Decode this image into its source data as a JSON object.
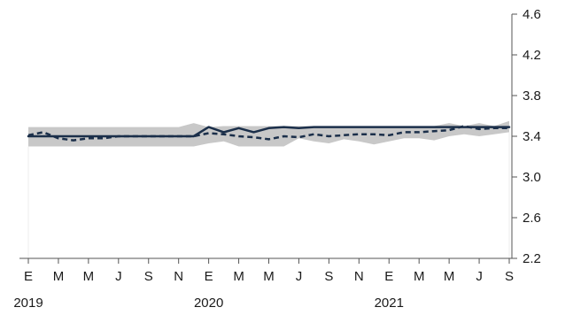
{
  "chart_data": {
    "type": "line",
    "title": "",
    "xlabel": "",
    "ylabel": "",
    "ylim": [
      2.2,
      4.6
    ],
    "yticks": [
      2.2,
      2.6,
      3.0,
      3.4,
      3.8,
      4.2,
      4.6
    ],
    "y_axis_position": "right",
    "grid": false,
    "legend": "none",
    "x_tick_labels": [
      "E",
      "M",
      "M",
      "J",
      "S",
      "N",
      "E",
      "M",
      "M",
      "J",
      "S",
      "N",
      "E",
      "M",
      "M",
      "J",
      "S"
    ],
    "x_year_labels": [
      "2019",
      "2020",
      "2021"
    ],
    "x": [
      "2019-01",
      "2019-02",
      "2019-03",
      "2019-04",
      "2019-05",
      "2019-06",
      "2019-07",
      "2019-08",
      "2019-09",
      "2019-10",
      "2019-11",
      "2019-12",
      "2020-01",
      "2020-02",
      "2020-03",
      "2020-04",
      "2020-05",
      "2020-06",
      "2020-07",
      "2020-08",
      "2020-09",
      "2020-10",
      "2020-11",
      "2020-12",
      "2021-01",
      "2021-02",
      "2021-03",
      "2021-04",
      "2021-05",
      "2021-06",
      "2021-07",
      "2021-08",
      "2021-09"
    ],
    "band": {
      "lower": [
        3.3,
        3.3,
        3.3,
        3.3,
        3.3,
        3.3,
        3.3,
        3.3,
        3.3,
        3.3,
        3.3,
        3.3,
        3.33,
        3.35,
        3.3,
        3.3,
        3.3,
        3.3,
        3.38,
        3.35,
        3.33,
        3.37,
        3.35,
        3.32,
        3.35,
        3.38,
        3.38,
        3.36,
        3.4,
        3.42,
        3.4,
        3.42,
        3.44
      ],
      "upper": [
        3.49,
        3.49,
        3.49,
        3.49,
        3.49,
        3.49,
        3.49,
        3.49,
        3.49,
        3.49,
        3.49,
        3.53,
        3.49,
        3.5,
        3.5,
        3.5,
        3.5,
        3.5,
        3.5,
        3.5,
        3.5,
        3.5,
        3.5,
        3.5,
        3.5,
        3.5,
        3.5,
        3.5,
        3.53,
        3.5,
        3.53,
        3.5,
        3.55
      ],
      "color": "#c8c8c8"
    },
    "series": [
      {
        "values": [
          3.4,
          3.4,
          3.4,
          3.4,
          3.4,
          3.4,
          3.4,
          3.4,
          3.4,
          3.4,
          3.4,
          3.4,
          3.49,
          3.44,
          3.48,
          3.44,
          3.48,
          3.49,
          3.48,
          3.49,
          3.49,
          3.49,
          3.49,
          3.49,
          3.49,
          3.49,
          3.49,
          3.49,
          3.49,
          3.49,
          3.49,
          3.49,
          3.49
        ],
        "color": "#1b2f4a",
        "style": "solid"
      },
      {
        "values": [
          3.41,
          3.44,
          3.38,
          3.36,
          3.38,
          3.38,
          3.4,
          3.4,
          3.4,
          3.4,
          3.4,
          3.4,
          3.43,
          3.42,
          3.4,
          3.39,
          3.37,
          3.4,
          3.39,
          3.42,
          3.4,
          3.41,
          3.42,
          3.42,
          3.41,
          3.44,
          3.44,
          3.45,
          3.46,
          3.5,
          3.47,
          3.48,
          3.48
        ],
        "color": "#1b2f4a",
        "style": "dashed"
      }
    ]
  }
}
